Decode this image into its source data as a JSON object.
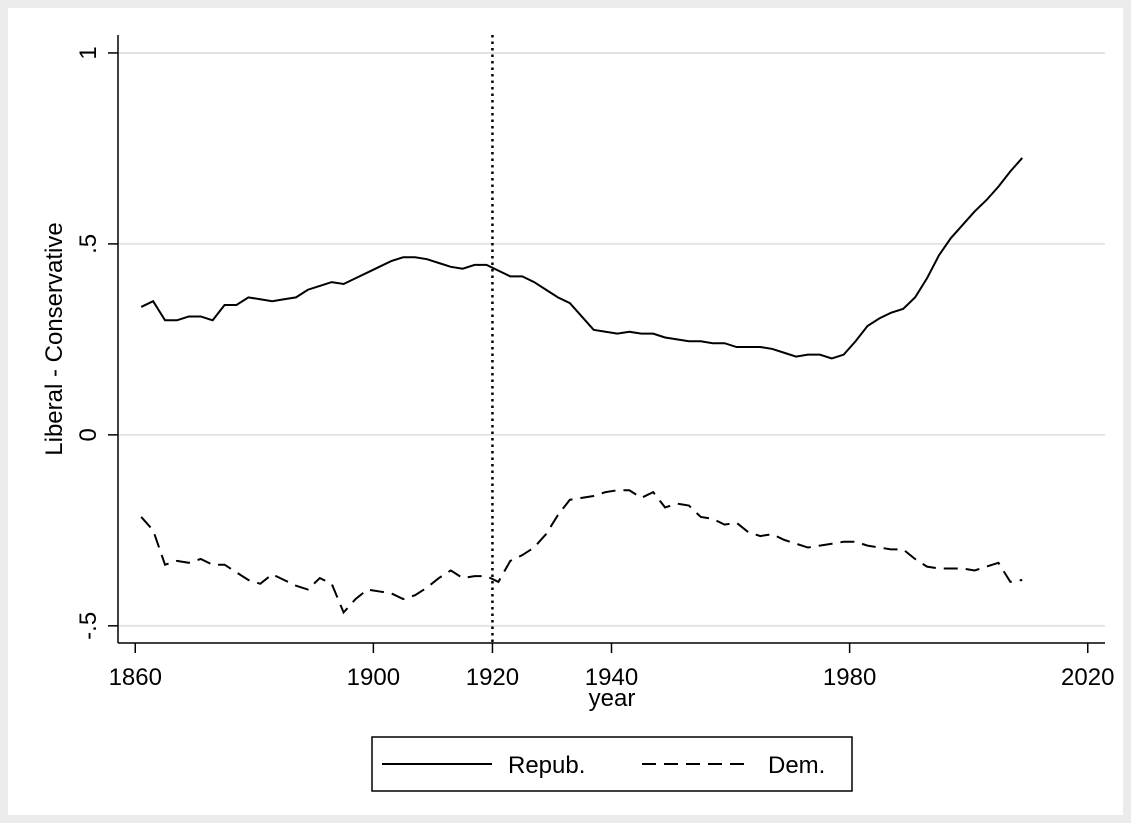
{
  "chart_data": {
    "type": "line",
    "x_label": "year",
    "y_label": "Liberal - Conservative",
    "x": [
      1861,
      1863,
      1865,
      1867,
      1869,
      1871,
      1873,
      1875,
      1877,
      1879,
      1881,
      1883,
      1885,
      1887,
      1889,
      1891,
      1893,
      1895,
      1897,
      1899,
      1901,
      1903,
      1905,
      1907,
      1909,
      1911,
      1913,
      1915,
      1917,
      1919,
      1921,
      1923,
      1925,
      1927,
      1929,
      1931,
      1933,
      1935,
      1937,
      1939,
      1941,
      1943,
      1945,
      1947,
      1949,
      1951,
      1953,
      1955,
      1957,
      1959,
      1961,
      1963,
      1965,
      1967,
      1969,
      1971,
      1973,
      1975,
      1977,
      1979,
      1981,
      1983,
      1985,
      1987,
      1989,
      1991,
      1993,
      1995,
      1997,
      1999,
      2001,
      2003,
      2005,
      2007,
      2009
    ],
    "series": [
      {
        "name": "Repub.",
        "color": "#000000",
        "style": "solid",
        "values": [
          0.335,
          0.35,
          0.3,
          0.3,
          0.31,
          0.31,
          0.3,
          0.34,
          0.34,
          0.36,
          0.355,
          0.35,
          0.355,
          0.36,
          0.38,
          0.39,
          0.4,
          0.395,
          0.41,
          0.425,
          0.44,
          0.455,
          0.465,
          0.465,
          0.46,
          0.45,
          0.44,
          0.435,
          0.445,
          0.445,
          0.43,
          0.415,
          0.415,
          0.4,
          0.38,
          0.36,
          0.345,
          0.31,
          0.275,
          0.27,
          0.265,
          0.27,
          0.265,
          0.265,
          0.255,
          0.25,
          0.245,
          0.245,
          0.24,
          0.24,
          0.23,
          0.23,
          0.23,
          0.225,
          0.215,
          0.205,
          0.21,
          0.21,
          0.2,
          0.21,
          0.245,
          0.285,
          0.305,
          0.32,
          0.33,
          0.36,
          0.41,
          0.47,
          0.515,
          0.55,
          0.585,
          0.615,
          0.65,
          0.69,
          0.725
        ]
      },
      {
        "name": "Dem.",
        "color": "#000000",
        "style": "dashed",
        "values": [
          -0.215,
          -0.25,
          -0.34,
          -0.33,
          -0.335,
          -0.325,
          -0.34,
          -0.34,
          -0.36,
          -0.38,
          -0.39,
          -0.365,
          -0.38,
          -0.395,
          -0.405,
          -0.375,
          -0.39,
          -0.465,
          -0.43,
          -0.405,
          -0.41,
          -0.415,
          -0.43,
          -0.42,
          -0.4,
          -0.375,
          -0.355,
          -0.375,
          -0.37,
          -0.37,
          -0.385,
          -0.33,
          -0.315,
          -0.295,
          -0.26,
          -0.21,
          -0.17,
          -0.165,
          -0.16,
          -0.15,
          -0.145,
          -0.145,
          -0.165,
          -0.15,
          -0.19,
          -0.18,
          -0.185,
          -0.215,
          -0.22,
          -0.235,
          -0.23,
          -0.255,
          -0.265,
          -0.26,
          -0.275,
          -0.285,
          -0.295,
          -0.29,
          -0.285,
          -0.28,
          -0.28,
          -0.29,
          -0.295,
          -0.3,
          -0.3,
          -0.325,
          -0.345,
          -0.35,
          -0.35,
          -0.35,
          -0.355,
          -0.345,
          -0.335,
          -0.385,
          -0.38
        ]
      }
    ],
    "xlim": [
      1857.1,
      2022.9
    ],
    "ylim": [
      -0.545,
      1.047
    ],
    "xticks": [
      1860,
      1900,
      1920,
      1940,
      1980,
      2020
    ],
    "yticks": [
      {
        "value": -0.5,
        "label": "-.5"
      },
      0,
      {
        "value": 0.5,
        "label": ".5"
      },
      1
    ],
    "xline": 1920,
    "grid": true,
    "legend": "bottom"
  }
}
